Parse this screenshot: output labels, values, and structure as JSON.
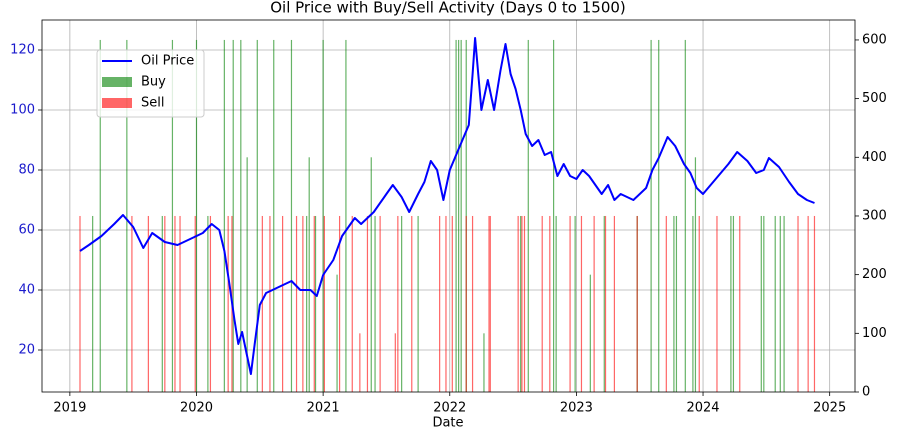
{
  "chart_data": {
    "type": "combo",
    "title": "Oil Price with Buy/Sell Activity (Days 0 to 1500)",
    "x_label": "Date",
    "xlim": [
      2018.78,
      2025.2
    ],
    "xticks": [
      2019,
      2020,
      2021,
      2022,
      2023,
      2024,
      2025
    ],
    "ylim": [
      6,
      130
    ],
    "yticks": [
      20,
      40,
      60,
      80,
      100,
      120
    ],
    "y2lim": [
      0,
      634
    ],
    "y2ticks": [
      0,
      100,
      200,
      300,
      400,
      500,
      600
    ],
    "grid": true,
    "legend": "upper left",
    "series": [
      {
        "name": "Oil Price",
        "type": "line",
        "color": "#0000ff",
        "x": [
          2019.08,
          2019.15,
          2019.25,
          2019.35,
          2019.42,
          2019.5,
          2019.58,
          2019.65,
          2019.75,
          2019.85,
          2019.95,
          2020.05,
          2020.12,
          2020.18,
          2020.22,
          2020.26,
          2020.3,
          2020.33,
          2020.36,
          2020.4,
          2020.43,
          2020.46,
          2020.5,
          2020.55,
          2020.65,
          2020.75,
          2020.82,
          2020.9,
          2020.95,
          2021.0,
          2021.08,
          2021.15,
          2021.25,
          2021.3,
          2021.4,
          2021.5,
          2021.55,
          2021.62,
          2021.68,
          2021.75,
          2021.8,
          2021.85,
          2021.9,
          2021.95,
          2022.0,
          2022.08,
          2022.15,
          2022.18,
          2022.2,
          2022.25,
          2022.3,
          2022.35,
          2022.4,
          2022.44,
          2022.48,
          2022.52,
          2022.56,
          2022.6,
          2022.65,
          2022.7,
          2022.75,
          2022.8,
          2022.85,
          2022.9,
          2022.95,
          2023.0,
          2023.05,
          2023.1,
          2023.2,
          2023.25,
          2023.3,
          2023.35,
          2023.45,
          2023.55,
          2023.6,
          2023.65,
          2023.72,
          2023.78,
          2023.85,
          2023.9,
          2023.95,
          2024.0,
          2024.1,
          2024.2,
          2024.27,
          2024.35,
          2024.42,
          2024.48,
          2024.52,
          2024.6,
          2024.68,
          2024.75,
          2024.82,
          2024.88
        ],
        "values": [
          53,
          55,
          58,
          62,
          65,
          61,
          54,
          59,
          56,
          55,
          57,
          59,
          62,
          60,
          53,
          42,
          30,
          22,
          26,
          18,
          12,
          22,
          35,
          39,
          41,
          43,
          40,
          40,
          38,
          45,
          50,
          58,
          64,
          62,
          66,
          72,
          75,
          71,
          66,
          72,
          76,
          83,
          80,
          70,
          80,
          88,
          95,
          112,
          124,
          100,
          110,
          100,
          113,
          122,
          112,
          107,
          100,
          92,
          88,
          90,
          85,
          86,
          78,
          82,
          78,
          77,
          80,
          78,
          72,
          75,
          70,
          72,
          70,
          74,
          80,
          84,
          91,
          88,
          82,
          79,
          74,
          72,
          77,
          82,
          86,
          83,
          79,
          80,
          84,
          81,
          76,
          72,
          70,
          69
        ]
      },
      {
        "name": "Buy",
        "type": "bar",
        "axis": "y2",
        "color": "#008000",
        "x": [
          2019.18,
          2019.24,
          2019.45,
          2019.73,
          2019.81,
          2020.0,
          2020.09,
          2020.22,
          2020.29,
          2020.35,
          2020.4,
          2020.48,
          2020.61,
          2020.75,
          2020.87,
          2020.89,
          2020.94,
          2021.0,
          2021.11,
          2021.18,
          2021.38,
          2021.41,
          2021.62,
          2021.75,
          2022.05,
          2022.07,
          2022.09,
          2022.13,
          2022.27,
          2022.56,
          2022.62,
          2022.82,
          2022.84,
          2022.99,
          2023.11,
          2023.22,
          2023.48,
          2023.59,
          2023.65,
          2023.77,
          2023.79,
          2023.86,
          2023.92,
          2023.94,
          2024.22,
          2024.24,
          2024.46,
          2024.48,
          2024.57,
          2024.61,
          2024.64
        ],
        "values": [
          300,
          600,
          600,
          300,
          600,
          600,
          300,
          600,
          600,
          600,
          400,
          600,
          600,
          600,
          300,
          400,
          300,
          600,
          200,
          600,
          400,
          300,
          300,
          300,
          600,
          600,
          600,
          600,
          100,
          300,
          600,
          600,
          300,
          300,
          200,
          300,
          300,
          600,
          600,
          300,
          300,
          600,
          300,
          400,
          300,
          300,
          300,
          300,
          300,
          300,
          300
        ]
      },
      {
        "name": "Sell",
        "type": "bar",
        "axis": "y2",
        "color": "#ff0000",
        "x": [
          2019.08,
          2019.49,
          2019.62,
          2019.75,
          2019.83,
          2019.87,
          2019.99,
          2020.11,
          2020.25,
          2020.28,
          2020.52,
          2020.58,
          2020.68,
          2020.79,
          2020.84,
          2020.93,
          2021.01,
          2021.13,
          2021.23,
          2021.29,
          2021.35,
          2021.45,
          2021.57,
          2021.59,
          2021.7,
          2021.92,
          2021.97,
          2022.02,
          2022.13,
          2022.18,
          2022.31,
          2022.32,
          2022.54,
          2022.57,
          2022.59,
          2022.73,
          2022.79,
          2022.95,
          2023.04,
          2023.14,
          2023.23,
          2023.3,
          2023.48,
          2023.71,
          2023.97,
          2024.11,
          2024.29,
          2024.75,
          2024.83,
          2024.88
        ],
        "values": [
          300,
          300,
          300,
          300,
          300,
          300,
          300,
          300,
          300,
          300,
          300,
          300,
          300,
          300,
          300,
          300,
          300,
          300,
          300,
          100,
          300,
          300,
          100,
          300,
          300,
          300,
          300,
          300,
          300,
          300,
          300,
          300,
          300,
          300,
          300,
          300,
          300,
          300,
          300,
          300,
          300,
          300,
          300,
          300,
          300,
          300,
          300,
          300,
          300,
          300
        ]
      }
    ]
  }
}
